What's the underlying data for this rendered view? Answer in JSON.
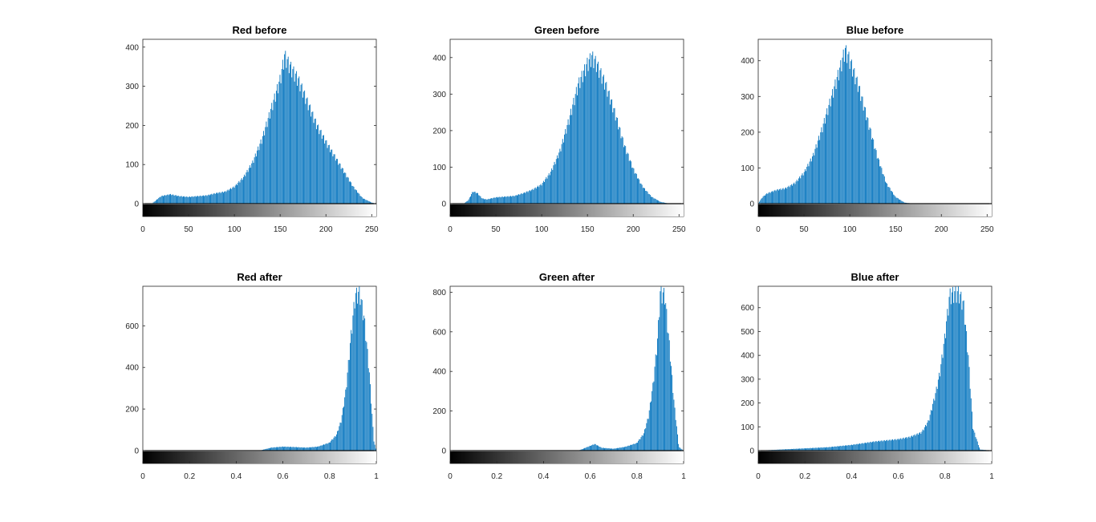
{
  "figure": {
    "bar_color": "#0072BD",
    "axis_color": "#262626",
    "background": "#ffffff"
  },
  "chart_data": [
    {
      "type": "bar",
      "title": "Red before",
      "x_range": [
        0,
        255
      ],
      "ylim": [
        0,
        420
      ],
      "xticks": [
        0,
        50,
        100,
        150,
        200,
        250
      ],
      "xtick_labels": [
        "0",
        "50",
        "100",
        "150",
        "200",
        "250"
      ],
      "yticks": [
        0,
        100,
        200,
        300,
        400
      ],
      "ytick_labels": [
        "0",
        "100",
        "200",
        "300",
        "400"
      ],
      "grayscale_bar": true,
      "grid": false,
      "series": [
        {
          "x": [
            10,
            20,
            30,
            40,
            50,
            60,
            70,
            80,
            90,
            100,
            110,
            120,
            130,
            140,
            150,
            155,
            160,
            170,
            180,
            190,
            200,
            210,
            220,
            230,
            240,
            250,
            255
          ],
          "values": [
            0,
            20,
            25,
            20,
            18,
            20,
            22,
            28,
            32,
            45,
            70,
            110,
            170,
            250,
            330,
            395,
            370,
            330,
            270,
            210,
            165,
            125,
            85,
            45,
            15,
            3,
            0
          ]
        }
      ]
    },
    {
      "type": "bar",
      "title": "Green before",
      "x_range": [
        0,
        255
      ],
      "ylim": [
        0,
        450
      ],
      "xticks": [
        0,
        50,
        100,
        150,
        200,
        250
      ],
      "xtick_labels": [
        "0",
        "50",
        "100",
        "150",
        "200",
        "250"
      ],
      "yticks": [
        0,
        100,
        200,
        300,
        400
      ],
      "ytick_labels": [
        "0",
        "100",
        "200",
        "300",
        "400"
      ],
      "grayscale_bar": true,
      "grid": false,
      "series": [
        {
          "x": [
            0,
            15,
            20,
            25,
            30,
            35,
            40,
            50,
            60,
            70,
            80,
            90,
            100,
            110,
            120,
            130,
            140,
            150,
            155,
            160,
            170,
            180,
            190,
            200,
            210,
            220,
            230,
            240,
            255
          ],
          "values": [
            0,
            0,
            10,
            35,
            30,
            15,
            12,
            18,
            20,
            22,
            30,
            40,
            55,
            90,
            150,
            240,
            340,
            400,
            420,
            400,
            340,
            260,
            170,
            100,
            50,
            20,
            5,
            0,
            0
          ]
        }
      ]
    },
    {
      "type": "bar",
      "title": "Blue before",
      "x_range": [
        0,
        255
      ],
      "ylim": [
        0,
        460
      ],
      "xticks": [
        0,
        50,
        100,
        150,
        200,
        250
      ],
      "xtick_labels": [
        "0",
        "50",
        "100",
        "150",
        "200",
        "250"
      ],
      "yticks": [
        0,
        100,
        200,
        300,
        400
      ],
      "ytick_labels": [
        "0",
        "100",
        "200",
        "300",
        "400"
      ],
      "grayscale_bar": true,
      "grid": false,
      "series": [
        {
          "x": [
            0,
            5,
            10,
            20,
            30,
            40,
            50,
            60,
            70,
            80,
            90,
            95,
            100,
            110,
            120,
            130,
            140,
            150,
            160,
            170,
            255
          ],
          "values": [
            0,
            20,
            30,
            40,
            45,
            60,
            90,
            140,
            220,
            310,
            400,
            450,
            420,
            340,
            240,
            140,
            60,
            20,
            3,
            0,
            0
          ]
        }
      ]
    },
    {
      "type": "bar",
      "title": "Red after",
      "x_range": [
        0,
        1
      ],
      "ylim": [
        0,
        790
      ],
      "xticks": [
        0,
        0.2,
        0.4,
        0.6,
        0.8,
        1
      ],
      "xtick_labels": [
        "0",
        "0.2",
        "0.4",
        "0.6",
        "0.8",
        "1"
      ],
      "yticks": [
        0,
        200,
        400,
        600
      ],
      "ytick_labels": [
        "0",
        "200",
        "400",
        "600"
      ],
      "grayscale_bar": true,
      "grid": false,
      "series": [
        {
          "x": [
            0,
            0.5,
            0.55,
            0.6,
            0.65,
            0.7,
            0.75,
            0.8,
            0.83,
            0.85,
            0.87,
            0.89,
            0.91,
            0.93,
            0.95,
            0.97,
            0.99,
            1
          ],
          "values": [
            0,
            0,
            15,
            20,
            18,
            15,
            20,
            40,
            80,
            150,
            300,
            550,
            780,
            790,
            650,
            400,
            50,
            0
          ]
        }
      ]
    },
    {
      "type": "bar",
      "title": "Green after",
      "x_range": [
        0,
        1
      ],
      "ylim": [
        0,
        830
      ],
      "xticks": [
        0,
        0.2,
        0.4,
        0.6,
        0.8,
        1
      ],
      "xtick_labels": [
        "0",
        "0.2",
        "0.4",
        "0.6",
        "0.8",
        "1"
      ],
      "yticks": [
        0,
        200,
        400,
        600,
        800
      ],
      "ytick_labels": [
        "0",
        "200",
        "400",
        "600",
        "800"
      ],
      "grayscale_bar": true,
      "grid": false,
      "series": [
        {
          "x": [
            0,
            0.55,
            0.6,
            0.62,
            0.65,
            0.7,
            0.75,
            0.8,
            0.83,
            0.85,
            0.87,
            0.89,
            0.9,
            0.92,
            0.94,
            0.96,
            0.98,
            1
          ],
          "values": [
            0,
            0,
            25,
            35,
            15,
            10,
            20,
            40,
            90,
            180,
            350,
            600,
            830,
            820,
            550,
            250,
            20,
            0
          ]
        }
      ]
    },
    {
      "type": "bar",
      "title": "Blue after",
      "x_range": [
        0,
        1
      ],
      "ylim": [
        0,
        690
      ],
      "xticks": [
        0,
        0.2,
        0.4,
        0.6,
        0.8,
        1
      ],
      "xtick_labels": [
        "0",
        "0.2",
        "0.4",
        "0.6",
        "0.8",
        "1"
      ],
      "yticks": [
        0,
        100,
        200,
        300,
        400,
        500,
        600
      ],
      "ytick_labels": [
        "0",
        "100",
        "200",
        "300",
        "400",
        "500",
        "600"
      ],
      "grayscale_bar": true,
      "grid": false,
      "series": [
        {
          "x": [
            0,
            0.1,
            0.2,
            0.3,
            0.4,
            0.5,
            0.55,
            0.6,
            0.65,
            0.7,
            0.73,
            0.76,
            0.78,
            0.8,
            0.82,
            0.84,
            0.86,
            0.88,
            0.9,
            0.92,
            0.95,
            1
          ],
          "values": [
            0,
            5,
            10,
            15,
            25,
            40,
            45,
            50,
            60,
            80,
            130,
            250,
            350,
            500,
            680,
            690,
            690,
            640,
            420,
            100,
            5,
            0
          ]
        }
      ]
    }
  ]
}
